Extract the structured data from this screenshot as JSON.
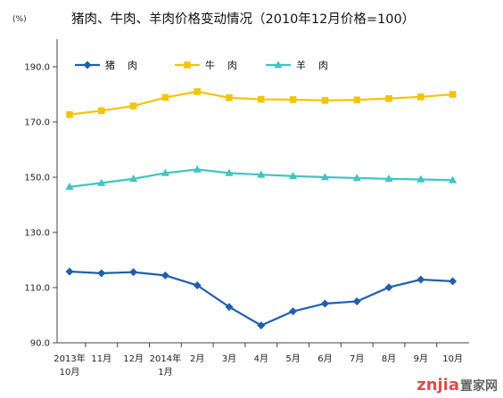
{
  "chart_data": {
    "type": "line",
    "title": "猪肉、牛肉、羊肉价格变动情况（2010年12月价格=100）",
    "unit": "(%)",
    "ylim": [
      90,
      200
    ],
    "yticks": [
      "90.0",
      "110.0",
      "130.0",
      "150.0",
      "170.0",
      "190.0"
    ],
    "ytick_values": [
      90,
      110,
      130,
      150,
      170,
      190
    ],
    "categories": [
      [
        "2013年",
        "10月"
      ],
      [
        "11月"
      ],
      [
        "12月"
      ],
      [
        "2014年",
        "1月"
      ],
      [
        "2月"
      ],
      [
        "3月"
      ],
      [
        "4月"
      ],
      [
        "5月"
      ],
      [
        "6月"
      ],
      [
        "7月"
      ],
      [
        "8月"
      ],
      [
        "9月"
      ],
      [
        "10月"
      ]
    ],
    "legend_position": "top-left",
    "grid": false,
    "series": [
      {
        "name": "猪    肉",
        "color": "#1f5fae",
        "marker": "diamond",
        "values": [
          115.8,
          115.2,
          115.6,
          114.4,
          110.8,
          103.0,
          96.3,
          101.4,
          104.2,
          105.0,
          110.1,
          112.9,
          112.3
        ]
      },
      {
        "name": "牛    肉",
        "color": "#f5c400",
        "marker": "square",
        "values": [
          172.7,
          174.1,
          175.8,
          178.9,
          181.0,
          178.8,
          178.2,
          178.1,
          177.8,
          178.0,
          178.5,
          179.1,
          180.0
        ]
      },
      {
        "name": "羊    肉",
        "color": "#40c4c4",
        "marker": "triangle",
        "values": [
          146.5,
          147.9,
          149.4,
          151.5,
          152.8,
          151.5,
          150.9,
          150.4,
          150.0,
          149.7,
          149.4,
          149.2,
          148.9
        ]
      }
    ]
  },
  "watermark": {
    "logo": "znjia",
    "suffix": "置家网"
  }
}
